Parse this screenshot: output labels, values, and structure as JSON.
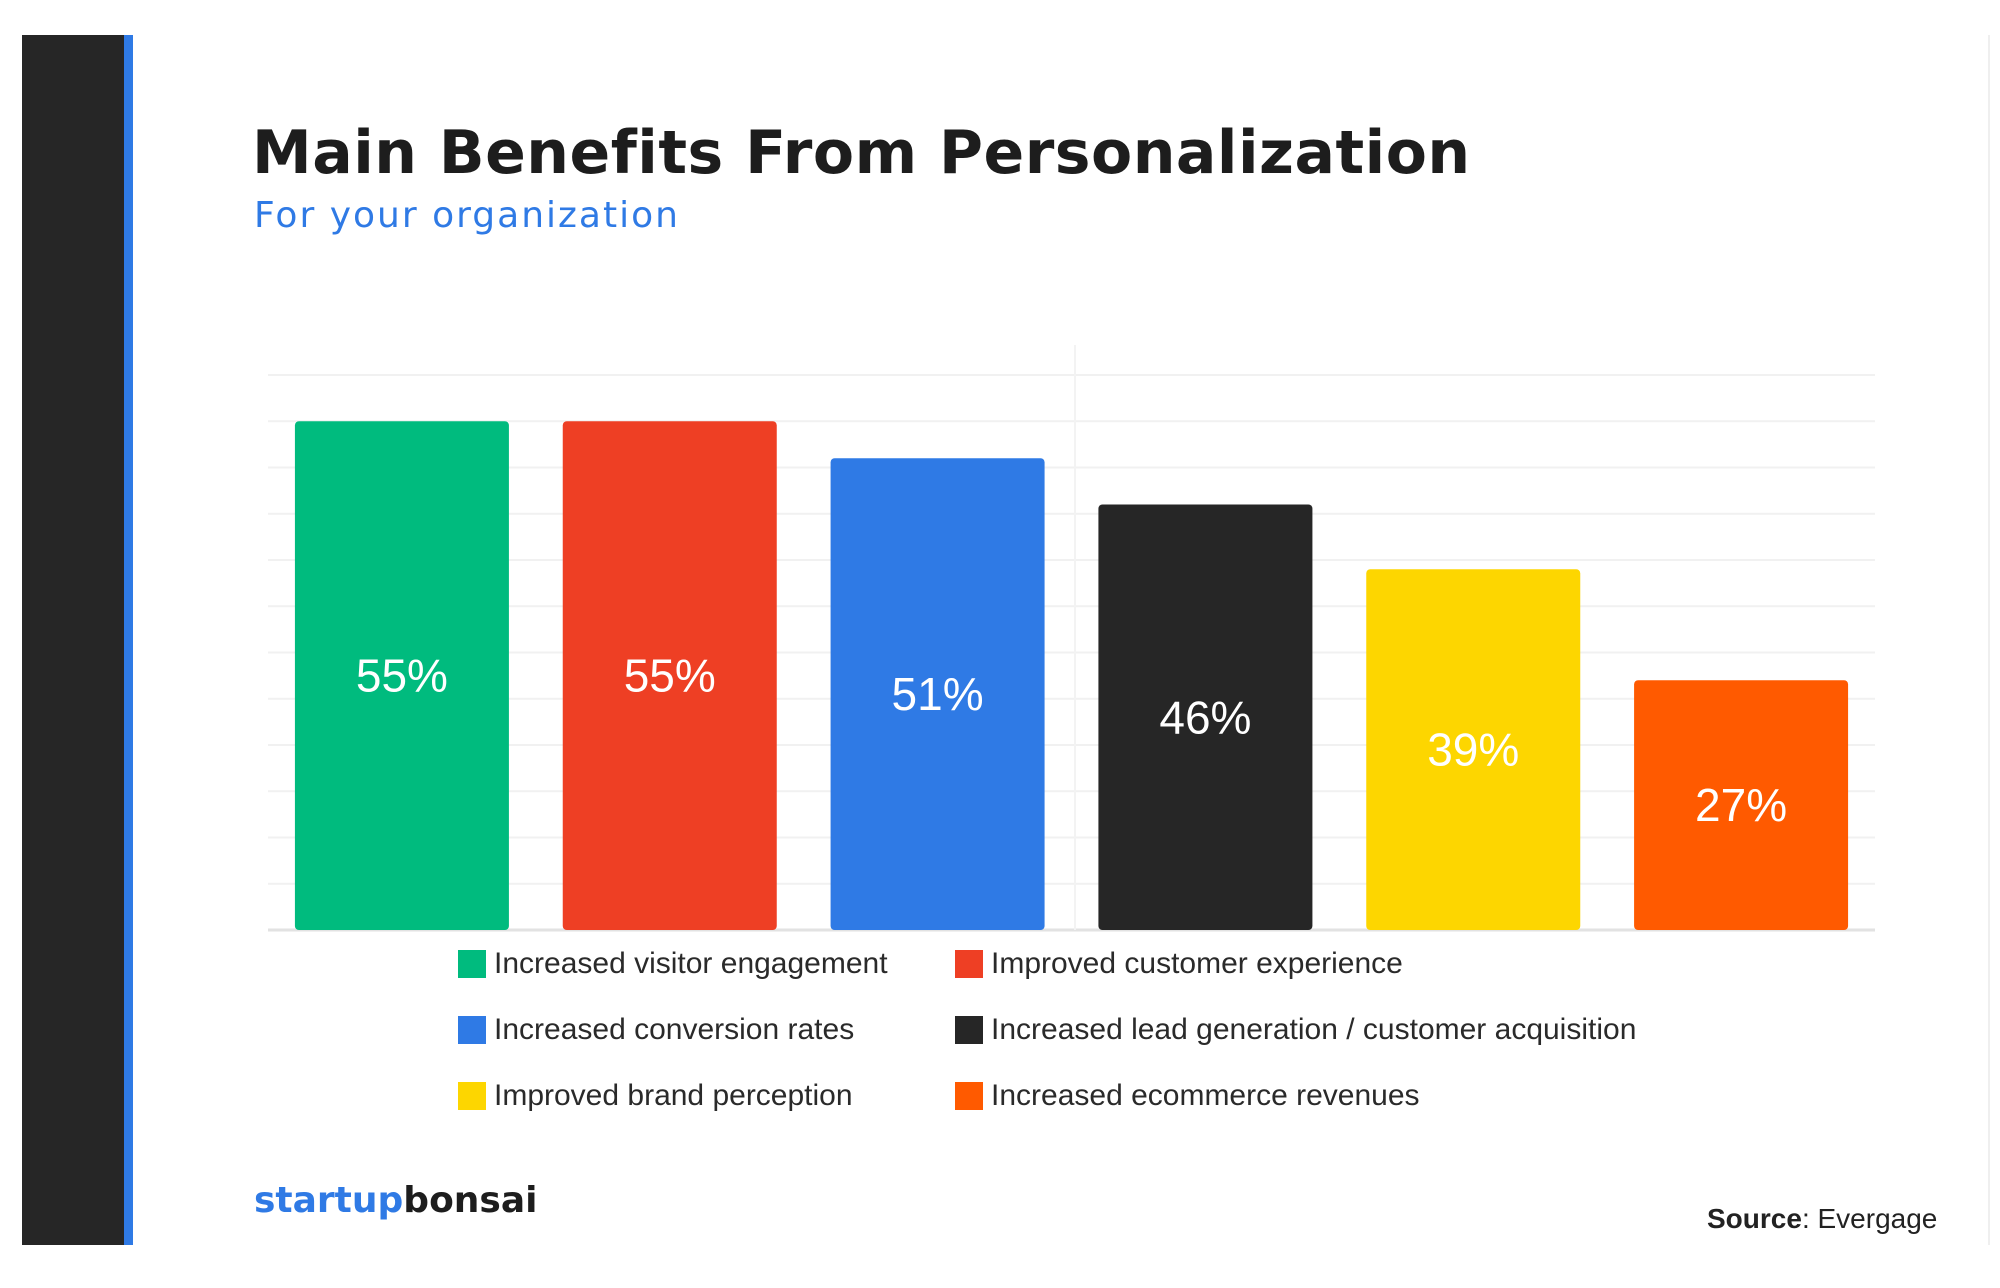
{
  "header": {
    "title": "Main Benefits From Personalization",
    "subtitle": "For your organization"
  },
  "footer": {
    "brand_part1": "startup",
    "brand_part2": "bonsai",
    "source_label": "Source",
    "source_value": ": Evergage"
  },
  "colors": {
    "accent": "#2f7ae5",
    "sidebar": "#262626"
  },
  "chart_data": {
    "type": "bar",
    "title": "Main Benefits From Personalization",
    "subtitle": "For your organization",
    "categories": [
      "Increased visitor engagement",
      "Improved customer experience",
      "Increased conversion rates",
      "Increased lead generation / customer acquisition",
      "Improved brand perception",
      "Increased ecommerce revenues"
    ],
    "values": [
      55,
      55,
      51,
      46,
      39,
      27
    ],
    "value_labels": [
      "55%",
      "55%",
      "51%",
      "46%",
      "39%",
      "27%"
    ],
    "colors": [
      "#00bb7e",
      "#ee3f24",
      "#2f7ae5",
      "#262626",
      "#fdd600",
      "#ff5a00"
    ],
    "unit": "%",
    "ylim": [
      0,
      60
    ],
    "grid": true,
    "legend_position": "bottom"
  }
}
